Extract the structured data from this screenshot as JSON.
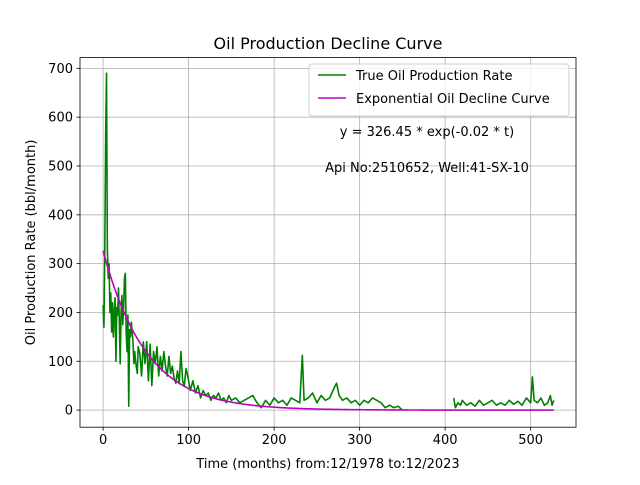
{
  "chart_data": {
    "type": "line",
    "title": "Oil Production Decline Curve",
    "xlabel": "Time (months) from:12/1978 to:12/2023",
    "ylabel": "Oil Production Rate (bbl/month)",
    "xlim": [
      -27,
      553
    ],
    "ylim": [
      -35,
      722
    ],
    "xticks": [
      0,
      100,
      200,
      300,
      400,
      500
    ],
    "yticks": [
      0,
      100,
      200,
      300,
      400,
      500,
      600,
      700
    ],
    "grid": true,
    "legend_position": "upper right",
    "annotations": [
      "y = 326.45 * exp(-0.02 * t)",
      "Api No:2510652, Well:41-SX-10"
    ],
    "series": [
      {
        "name": "True Oil Production Rate",
        "color": "#008000",
        "kind": "measured",
        "points": [
          [
            0,
            215
          ],
          [
            1,
            170
          ],
          [
            2,
            330
          ],
          [
            3,
            560
          ],
          [
            4,
            690
          ],
          [
            5,
            330
          ],
          [
            6,
            270
          ],
          [
            7,
            300
          ],
          [
            8,
            200
          ],
          [
            9,
            240
          ],
          [
            10,
            160
          ],
          [
            11,
            220
          ],
          [
            12,
            150
          ],
          [
            13,
            200
          ],
          [
            14,
            230
          ],
          [
            15,
            100
          ],
          [
            16,
            210
          ],
          [
            17,
            195
          ],
          [
            18,
            250
          ],
          [
            19,
            180
          ],
          [
            20,
            95
          ],
          [
            21,
            200
          ],
          [
            22,
            235
          ],
          [
            23,
            175
          ],
          [
            24,
            210
          ],
          [
            25,
            270
          ],
          [
            26,
            280
          ],
          [
            27,
            160
          ],
          [
            28,
            120
          ],
          [
            29,
            195
          ],
          [
            30,
            8
          ],
          [
            31,
            165
          ],
          [
            32,
            150
          ],
          [
            33,
            180
          ],
          [
            35,
            140
          ],
          [
            36,
            95
          ],
          [
            37,
            120
          ],
          [
            38,
            100
          ],
          [
            40,
            75
          ],
          [
            41,
            130
          ],
          [
            43,
            115
          ],
          [
            45,
            70
          ],
          [
            47,
            140
          ],
          [
            49,
            95
          ],
          [
            51,
            140
          ],
          [
            53,
            60
          ],
          [
            55,
            135
          ],
          [
            57,
            50
          ],
          [
            59,
            120
          ],
          [
            61,
            95
          ],
          [
            63,
            130
          ],
          [
            65,
            70
          ],
          [
            67,
            110
          ],
          [
            69,
            80
          ],
          [
            71,
            120
          ],
          [
            73,
            90
          ],
          [
            75,
            70
          ],
          [
            77,
            110
          ],
          [
            79,
            75
          ],
          [
            81,
            90
          ],
          [
            83,
            65
          ],
          [
            85,
            55
          ],
          [
            87,
            80
          ],
          [
            89,
            55
          ],
          [
            91,
            120
          ],
          [
            93,
            60
          ],
          [
            95,
            50
          ],
          [
            97,
            85
          ],
          [
            99,
            70
          ],
          [
            102,
            40
          ],
          [
            105,
            60
          ],
          [
            108,
            35
          ],
          [
            111,
            50
          ],
          [
            114,
            25
          ],
          [
            117,
            40
          ],
          [
            120,
            30
          ],
          [
            123,
            35
          ],
          [
            126,
            20
          ],
          [
            129,
            30
          ],
          [
            132,
            25
          ],
          [
            135,
            35
          ],
          [
            138,
            20
          ],
          [
            141,
            25
          ],
          [
            144,
            15
          ],
          [
            147,
            30
          ],
          [
            150,
            20
          ],
          [
            155,
            25
          ],
          [
            160,
            15
          ],
          [
            165,
            20
          ],
          [
            170,
            25
          ],
          [
            175,
            30
          ],
          [
            180,
            15
          ],
          [
            185,
            5
          ],
          [
            190,
            20
          ],
          [
            195,
            10
          ],
          [
            200,
            25
          ],
          [
            205,
            15
          ],
          [
            210,
            20
          ],
          [
            215,
            10
          ],
          [
            220,
            25
          ],
          [
            225,
            20
          ],
          [
            230,
            15
          ],
          [
            233,
            112
          ],
          [
            235,
            20
          ],
          [
            240,
            25
          ],
          [
            245,
            35
          ],
          [
            250,
            15
          ],
          [
            255,
            30
          ],
          [
            260,
            20
          ],
          [
            265,
            25
          ],
          [
            270,
            45
          ],
          [
            273,
            55
          ],
          [
            276,
            30
          ],
          [
            280,
            20
          ],
          [
            285,
            25
          ],
          [
            290,
            15
          ],
          [
            295,
            20
          ],
          [
            300,
            10
          ],
          [
            305,
            20
          ],
          [
            310,
            15
          ],
          [
            315,
            25
          ],
          [
            320,
            20
          ],
          [
            325,
            15
          ],
          [
            330,
            5
          ],
          [
            335,
            10
          ],
          [
            340,
            5
          ],
          [
            345,
            8
          ],
          [
            350,
            0
          ]
        ]
      },
      {
        "name": "",
        "color": "#008000",
        "kind": "measured",
        "points": [
          [
            410,
            25
          ],
          [
            412,
            5
          ],
          [
            415,
            15
          ],
          [
            418,
            10
          ],
          [
            420,
            20
          ],
          [
            425,
            10
          ],
          [
            430,
            15
          ],
          [
            435,
            8
          ],
          [
            440,
            20
          ],
          [
            445,
            10
          ],
          [
            450,
            15
          ],
          [
            455,
            20
          ],
          [
            460,
            10
          ],
          [
            465,
            15
          ],
          [
            470,
            10
          ],
          [
            475,
            20
          ],
          [
            480,
            12
          ],
          [
            485,
            18
          ],
          [
            490,
            10
          ],
          [
            495,
            25
          ],
          [
            500,
            15
          ],
          [
            502,
            68
          ],
          [
            504,
            20
          ],
          [
            508,
            15
          ],
          [
            512,
            25
          ],
          [
            516,
            10
          ],
          [
            520,
            15
          ],
          [
            523,
            30
          ],
          [
            525,
            10
          ],
          [
            527,
            20
          ]
        ]
      },
      {
        "name": "Exponential Oil Decline Curve",
        "color": "#bf00bf",
        "kind": "fit",
        "model": {
          "a": 326.45,
          "b": -0.02
        },
        "x_range": [
          0,
          527
        ]
      }
    ]
  }
}
